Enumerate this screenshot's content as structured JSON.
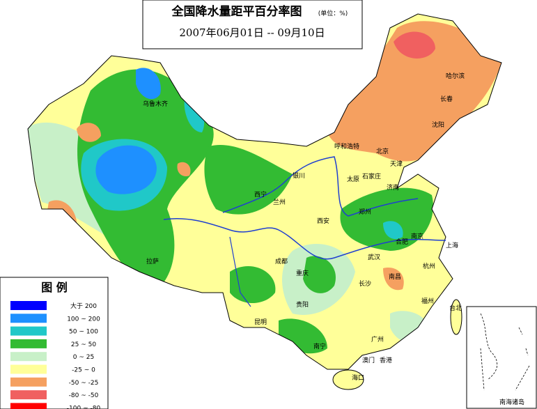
{
  "header": {
    "title": "全国降水量距平百分率图",
    "unit": "(单位：%)",
    "period": "2007年06月01日 -- 09月10日"
  },
  "legend": {
    "title": "图  例",
    "items": [
      {
        "label": "大于 200",
        "color": "#0000ff"
      },
      {
        "label": "100 ~ 200",
        "color": "#1e90ff"
      },
      {
        "label": "50 ~ 100",
        "color": "#20c8c8"
      },
      {
        "label": "25 ~ 50",
        "color": "#33bb33"
      },
      {
        "label": "0 ~ 25",
        "color": "#c8f0c8"
      },
      {
        "label": "-25 ~ 0",
        "color": "#ffff99"
      },
      {
        "label": "-50 ~ -25",
        "color": "#f5a060"
      },
      {
        "label": "-80 ~ -50",
        "color": "#f06060"
      },
      {
        "label": "-100 ~ -80",
        "color": "#ff0000"
      }
    ]
  },
  "cities": [
    "乌鲁木齐",
    "哈尔滨",
    "长春",
    "沈阳",
    "呼和浩特",
    "北京",
    "天津",
    "太原",
    "石家庄",
    "济南",
    "银川",
    "兰州",
    "西宁",
    "郑州",
    "西安",
    "合肥",
    "南京",
    "上海",
    "武汉",
    "成都",
    "重庆",
    "拉萨",
    "长沙",
    "南昌",
    "杭州",
    "福州",
    "贵阳",
    "昆明",
    "南宁",
    "广州",
    "香港",
    "澳门",
    "海口",
    "台北"
  ],
  "inset": {
    "label": "南海诸岛"
  }
}
